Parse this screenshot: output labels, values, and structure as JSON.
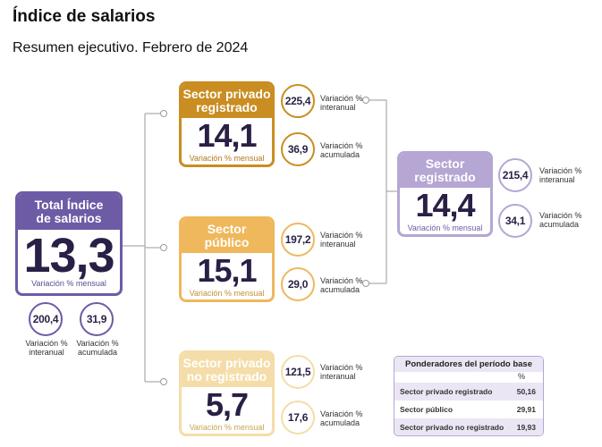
{
  "header": {
    "title": "Índice de salarios",
    "subtitle": "Resumen ejecutivo. Febrero de 2024"
  },
  "total": {
    "title_line1": "Total Índice",
    "title_line2": "de salarios",
    "value": "13,3",
    "caption": "Variación % mensual",
    "interanual": "200,4",
    "acumulada": "31,9",
    "interanual_label_1": "Variación %",
    "interanual_label_2": "interanual",
    "acumulada_label_1": "Variación %",
    "acumulada_label_2": "acumulada"
  },
  "privado": {
    "title_line1": "Sector privado",
    "title_line2": "registrado",
    "value": "14,1",
    "caption": "Variación % mensual",
    "interanual": "225,4",
    "acumulada": "36,9",
    "interanual_label_1": "Variación %",
    "interanual_label_2": "interanual",
    "acumulada_label_1": "Variación %",
    "acumulada_label_2": "acumulada"
  },
  "publico": {
    "title_line1": "Sector",
    "title_line2": "público",
    "value": "15,1",
    "caption": "Variación % mensual",
    "interanual": "197,2",
    "acumulada": "29,0",
    "interanual_label_1": "Variación %",
    "interanual_label_2": "interanual",
    "acumulada_label_1": "Variación %",
    "acumulada_label_2": "acumulada"
  },
  "no_registrado": {
    "title_line1": "Sector privado",
    "title_line2": "no registrado",
    "value": "5,7",
    "caption": "Variación % mensual",
    "interanual": "121,5",
    "acumulada": "17,6",
    "interanual_label_1": "Variación %",
    "interanual_label_2": "interanual",
    "acumulada_label_1": "Variación %",
    "acumulada_label_2": "acumulada"
  },
  "registrado": {
    "title_line1": "Sector",
    "title_line2": "registrado",
    "value": "14,4",
    "caption": "Variación % mensual",
    "interanual": "215,4",
    "acumulada": "34,1",
    "interanual_label_1": "Variación %",
    "interanual_label_2": "interanual",
    "acumulada_label_1": "Variación %",
    "acumulada_label_2": "acumulada"
  },
  "ponderadores": {
    "title": "Ponderadores del período base",
    "unit": "%",
    "rows": [
      {
        "label": "Sector privado registrado",
        "value": "50,16"
      },
      {
        "label": "Sector público",
        "value": "29,91"
      },
      {
        "label": "Sector privado no registrado",
        "value": "19,93"
      }
    ]
  },
  "colors": {
    "total": "#6e5ba6",
    "privado": "#c98d22",
    "publico": "#efb85c",
    "no_registrado": "#f4dda8",
    "registrado": "#b5a6d4"
  }
}
